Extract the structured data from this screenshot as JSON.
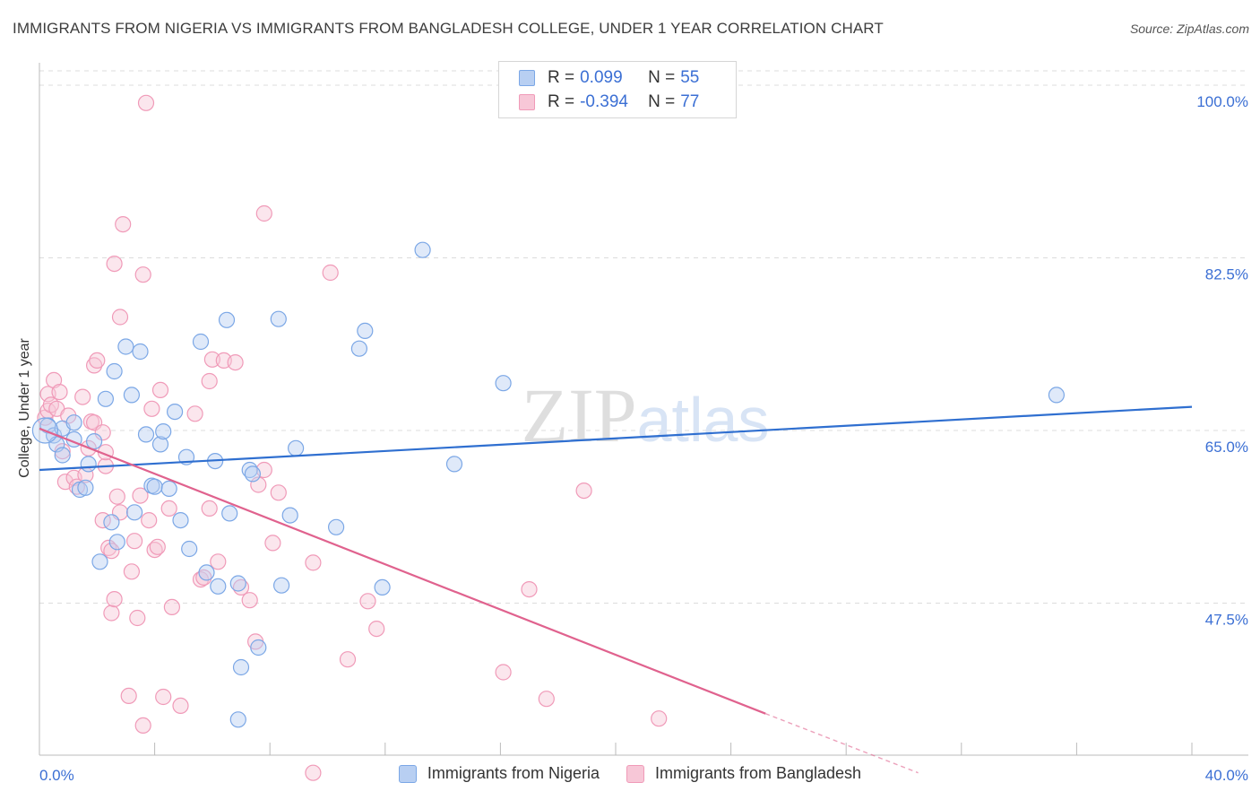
{
  "chart_data": {
    "type": "scatter",
    "title": "IMMIGRANTS FROM NIGERIA VS IMMIGRANTS FROM BANGLADESH COLLEGE, UNDER 1 YEAR CORRELATION CHART",
    "source": "Source: ZipAtlas.com",
    "xlabel": "",
    "ylabel": "College, Under 1 year",
    "xlim": [
      0,
      40
    ],
    "ylim": [
      30,
      102
    ],
    "x_tick_labels": {
      "left": "0.0%",
      "right": "40.0%"
    },
    "y_ticks": [
      {
        "value": 100,
        "label": "100.0%"
      },
      {
        "value": 82.5,
        "label": "82.5%"
      },
      {
        "value": 65,
        "label": "65.0%"
      },
      {
        "value": 47.5,
        "label": "47.5%"
      }
    ],
    "watermark": "ZIPatlas",
    "series": [
      {
        "name": "Immigrants from Nigeria",
        "color": "#7ba7e6",
        "fill": "#b8cff2",
        "line_color": "#2f6fd0",
        "R": "0.099",
        "N": "55",
        "trend": {
          "x": [
            0,
            40
          ],
          "y": [
            61.0,
            67.4
          ]
        },
        "points": [
          [
            0.3,
            65.5
          ],
          [
            0.5,
            64.5
          ],
          [
            0.6,
            63.6
          ],
          [
            0.8,
            62.5
          ],
          [
            0.8,
            65.2
          ],
          [
            1.2,
            65.8
          ],
          [
            1.2,
            64.1
          ],
          [
            1.4,
            59.0
          ],
          [
            1.6,
            59.2
          ],
          [
            1.7,
            61.6
          ],
          [
            1.9,
            63.9
          ],
          [
            2.1,
            51.7
          ],
          [
            2.3,
            68.2
          ],
          [
            2.5,
            55.7
          ],
          [
            2.6,
            71.0
          ],
          [
            2.7,
            53.7
          ],
          [
            3.0,
            73.5
          ],
          [
            3.2,
            68.6
          ],
          [
            3.3,
            56.7
          ],
          [
            3.5,
            73.0
          ],
          [
            3.7,
            64.6
          ],
          [
            3.9,
            59.4
          ],
          [
            4.0,
            59.3
          ],
          [
            4.2,
            63.6
          ],
          [
            4.3,
            64.9
          ],
          [
            4.5,
            59.1
          ],
          [
            4.7,
            66.9
          ],
          [
            4.9,
            55.9
          ],
          [
            5.1,
            62.3
          ],
          [
            5.2,
            53.0
          ],
          [
            5.6,
            74.0
          ],
          [
            5.8,
            50.6
          ],
          [
            6.1,
            61.9
          ],
          [
            6.2,
            49.2
          ],
          [
            6.5,
            76.2
          ],
          [
            6.6,
            56.6
          ],
          [
            6.9,
            49.5
          ],
          [
            7.0,
            41.0
          ],
          [
            7.3,
            61.0
          ],
          [
            7.4,
            60.6
          ],
          [
            6.9,
            35.7
          ],
          [
            7.6,
            43.0
          ],
          [
            8.3,
            76.3
          ],
          [
            8.4,
            49.3
          ],
          [
            8.7,
            56.4
          ],
          [
            8.9,
            63.2
          ],
          [
            10.3,
            55.2
          ],
          [
            11.1,
            73.3
          ],
          [
            11.3,
            75.1
          ],
          [
            11.9,
            49.1
          ],
          [
            13.3,
            83.3
          ],
          [
            14.4,
            61.6
          ],
          [
            16.1,
            69.8
          ],
          [
            35.3,
            68.6
          ],
          [
            0.2,
            65.0
          ]
        ]
      },
      {
        "name": "Immigrants from Bangladesh",
        "color": "#f09ab8",
        "fill": "#f7c7d7",
        "line_color": "#e0628e",
        "R": "-0.394",
        "N": "77",
        "trend": {
          "x": [
            0,
            25.2
          ],
          "y": [
            65.2,
            36.3
          ]
        },
        "trend_dashed": {
          "x": [
            25.2,
            30.5
          ],
          "y": [
            36.3,
            30.3
          ]
        },
        "points": [
          [
            0.2,
            66.3
          ],
          [
            0.3,
            67.0
          ],
          [
            0.3,
            68.7
          ],
          [
            0.4,
            67.6
          ],
          [
            0.5,
            70.1
          ],
          [
            0.6,
            67.2
          ],
          [
            0.7,
            68.9
          ],
          [
            0.8,
            62.9
          ],
          [
            0.9,
            59.8
          ],
          [
            1.0,
            66.5
          ],
          [
            1.2,
            60.2
          ],
          [
            1.3,
            59.3
          ],
          [
            1.5,
            68.4
          ],
          [
            1.6,
            60.5
          ],
          [
            1.7,
            63.2
          ],
          [
            1.8,
            65.9
          ],
          [
            1.9,
            65.8
          ],
          [
            1.9,
            71.6
          ],
          [
            2.0,
            72.1
          ],
          [
            2.2,
            64.8
          ],
          [
            2.2,
            55.9
          ],
          [
            2.3,
            61.4
          ],
          [
            2.3,
            62.8
          ],
          [
            2.4,
            53.1
          ],
          [
            2.5,
            52.8
          ],
          [
            2.5,
            46.5
          ],
          [
            2.6,
            47.9
          ],
          [
            2.6,
            81.9
          ],
          [
            2.7,
            58.3
          ],
          [
            2.8,
            56.7
          ],
          [
            2.8,
            76.5
          ],
          [
            2.9,
            85.9
          ],
          [
            3.1,
            38.1
          ],
          [
            3.2,
            50.7
          ],
          [
            3.3,
            53.8
          ],
          [
            3.4,
            46.0
          ],
          [
            3.5,
            58.4
          ],
          [
            3.6,
            35.1
          ],
          [
            3.6,
            80.8
          ],
          [
            3.7,
            98.2
          ],
          [
            3.9,
            67.2
          ],
          [
            4.0,
            52.9
          ],
          [
            4.1,
            53.2
          ],
          [
            4.2,
            69.1
          ],
          [
            4.3,
            38.0
          ],
          [
            4.5,
            57.1
          ],
          [
            4.6,
            47.1
          ],
          [
            4.9,
            37.1
          ],
          [
            5.4,
            66.7
          ],
          [
            5.6,
            49.9
          ],
          [
            5.7,
            50.1
          ],
          [
            5.9,
            57.1
          ],
          [
            5.9,
            70.0
          ],
          [
            6.0,
            72.2
          ],
          [
            6.2,
            51.7
          ],
          [
            6.4,
            72.1
          ],
          [
            6.8,
            71.9
          ],
          [
            7.0,
            49.1
          ],
          [
            7.3,
            47.8
          ],
          [
            7.5,
            43.6
          ],
          [
            7.6,
            59.5
          ],
          [
            7.8,
            61.0
          ],
          [
            7.8,
            87.0
          ],
          [
            8.1,
            53.6
          ],
          [
            8.3,
            58.7
          ],
          [
            9.5,
            51.6
          ],
          [
            9.5,
            30.3
          ],
          [
            10.1,
            81.0
          ],
          [
            10.7,
            41.8
          ],
          [
            11.4,
            47.7
          ],
          [
            11.7,
            44.9
          ],
          [
            16.1,
            40.5
          ],
          [
            17.0,
            48.9
          ],
          [
            17.6,
            37.8
          ],
          [
            18.9,
            58.9
          ],
          [
            21.5,
            35.8
          ],
          [
            3.8,
            55.9
          ]
        ]
      }
    ]
  }
}
